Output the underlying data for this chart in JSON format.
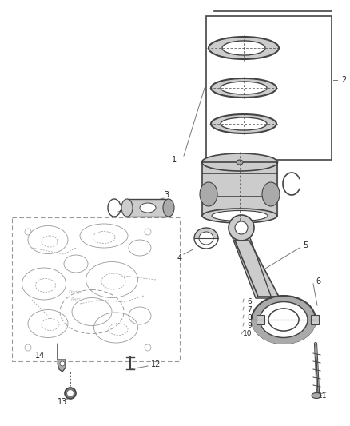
{
  "background_color": "#ffffff",
  "fig_width": 4.38,
  "fig_height": 5.33,
  "dpi": 100,
  "line_color": "#444444",
  "light_gray": "#cccccc",
  "mid_gray": "#aaaaaa",
  "dark_gray": "#777777",
  "text_color": "#222222",
  "block_line": "#999999"
}
